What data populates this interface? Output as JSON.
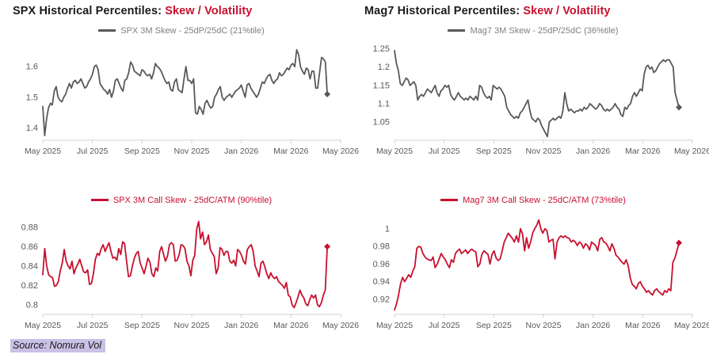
{
  "source_note": {
    "text": "Source: Nomura Vol",
    "highlight_color": "#c9c0e6"
  },
  "colors": {
    "title_black": "#1b1b1b",
    "title_red": "#c8102e",
    "axis_line": "#d0d0d0",
    "tick_label": "#595959",
    "background": "#ffffff"
  },
  "chart_data": [
    {
      "id": "spx-skew",
      "type": "line",
      "title": "SPX Historical Percentiles: Skew / Volatility",
      "title_black": "SPX Historical Percentiles:",
      "title_red": "Skew / Volatility",
      "legend": "SPX 3M Skew - 25dP/25dC (21%tile)",
      "line_color": "#595959",
      "legend_text_color": "#7f7f7f",
      "x_ticklabels": [
        "May 2025",
        "Jul 2025",
        "Sep 2025",
        "Nov 2025",
        "Jan 2026",
        "Mar 2026",
        "May 2026"
      ],
      "y_ticks": [
        {
          "label": "1.4",
          "value": 1.4
        },
        {
          "label": "1.5",
          "value": 1.5
        },
        {
          "label": "1.6",
          "value": 1.6
        }
      ],
      "ylim": [
        1.36,
        1.67
      ],
      "x_end_fraction": 0.955,
      "end_marker": "diamond",
      "grid": false,
      "legend_position": "top-center",
      "values": [
        1.47,
        1.375,
        1.43,
        1.465,
        1.48,
        1.475,
        1.52,
        1.535,
        1.5,
        1.49,
        1.485,
        1.5,
        1.51,
        1.53,
        1.545,
        1.53,
        1.55,
        1.555,
        1.545,
        1.55,
        1.56,
        1.545,
        1.53,
        1.535,
        1.55,
        1.56,
        1.575,
        1.6,
        1.605,
        1.59,
        1.545,
        1.535,
        1.525,
        1.52,
        1.51,
        1.525,
        1.5,
        1.52,
        1.555,
        1.56,
        1.545,
        1.53,
        1.52,
        1.555,
        1.56,
        1.58,
        1.615,
        1.605,
        1.585,
        1.58,
        1.575,
        1.57,
        1.59,
        1.585,
        1.575,
        1.57,
        1.575,
        1.56,
        1.58,
        1.61,
        1.6,
        1.595,
        1.585,
        1.57,
        1.555,
        1.545,
        1.55,
        1.525,
        1.52,
        1.55,
        1.56,
        1.525,
        1.52,
        1.515,
        1.56,
        1.6,
        1.555,
        1.555,
        1.545,
        1.56,
        1.45,
        1.445,
        1.47,
        1.46,
        1.445,
        1.48,
        1.49,
        1.475,
        1.465,
        1.47,
        1.5,
        1.51,
        1.525,
        1.535,
        1.5,
        1.49,
        1.5,
        1.505,
        1.51,
        1.5,
        1.51,
        1.52,
        1.525,
        1.53,
        1.54,
        1.52,
        1.5,
        1.54,
        1.545,
        1.53,
        1.52,
        1.51,
        1.5,
        1.51,
        1.53,
        1.55,
        1.545,
        1.56,
        1.57,
        1.575,
        1.555,
        1.545,
        1.555,
        1.56,
        1.58,
        1.57,
        1.575,
        1.585,
        1.595,
        1.59,
        1.605,
        1.61,
        1.6,
        1.655,
        1.64,
        1.6,
        1.585,
        1.575,
        1.595,
        1.59,
        1.56,
        1.585,
        1.585,
        1.53,
        1.53,
        1.58,
        1.63,
        1.625,
        1.615,
        1.51
      ]
    },
    {
      "id": "mag7-skew",
      "type": "line",
      "title": "Mag7 Historical Percentiles: Skew / Volatility",
      "title_black": "Mag7 Historical Percentiles:",
      "title_red": "Skew / Volatility",
      "legend": "Mag7 3M Skew - 25dP/25dC (36%tile)",
      "line_color": "#595959",
      "legend_text_color": "#7f7f7f",
      "x_ticklabels": [
        "May 2025",
        "Jul 2025",
        "Sep 2025",
        "Nov 2025",
        "Jan 2026",
        "Mar 2026",
        "May 2026"
      ],
      "y_ticks": [
        {
          "label": "1.05",
          "value": 1.05
        },
        {
          "label": "1.1",
          "value": 1.1
        },
        {
          "label": "1.15",
          "value": 1.15
        },
        {
          "label": "1.2",
          "value": 1.2
        },
        {
          "label": "1.25",
          "value": 1.25
        }
      ],
      "ylim": [
        1.0,
        1.26
      ],
      "x_end_fraction": 0.955,
      "end_marker": "diamond",
      "grid": false,
      "legend_position": "top-center",
      "values": [
        1.245,
        1.21,
        1.19,
        1.155,
        1.15,
        1.16,
        1.17,
        1.165,
        1.15,
        1.155,
        1.16,
        1.15,
        1.11,
        1.12,
        1.125,
        1.12,
        1.13,
        1.14,
        1.135,
        1.13,
        1.14,
        1.15,
        1.13,
        1.12,
        1.135,
        1.14,
        1.15,
        1.145,
        1.15,
        1.125,
        1.115,
        1.11,
        1.12,
        1.13,
        1.12,
        1.115,
        1.11,
        1.115,
        1.11,
        1.12,
        1.115,
        1.11,
        1.12,
        1.11,
        1.15,
        1.145,
        1.13,
        1.12,
        1.115,
        1.12,
        1.11,
        1.15,
        1.145,
        1.14,
        1.145,
        1.14,
        1.13,
        1.12,
        1.09,
        1.08,
        1.07,
        1.065,
        1.06,
        1.065,
        1.06,
        1.075,
        1.08,
        1.09,
        1.1,
        1.11,
        1.08,
        1.06,
        1.055,
        1.05,
        1.06,
        1.055,
        1.04,
        1.03,
        1.02,
        1.01,
        1.05,
        1.055,
        1.06,
        1.055,
        1.06,
        1.065,
        1.06,
        1.08,
        1.13,
        1.1,
        1.08,
        1.085,
        1.08,
        1.075,
        1.08,
        1.08,
        1.085,
        1.08,
        1.09,
        1.085,
        1.09,
        1.1,
        1.095,
        1.09,
        1.085,
        1.09,
        1.1,
        1.095,
        1.085,
        1.08,
        1.085,
        1.08,
        1.085,
        1.09,
        1.1,
        1.09,
        1.085,
        1.07,
        1.065,
        1.09,
        1.085,
        1.095,
        1.1,
        1.12,
        1.13,
        1.12,
        1.13,
        1.14,
        1.135,
        1.18,
        1.2,
        1.205,
        1.195,
        1.2,
        1.185,
        1.19,
        1.2,
        1.21,
        1.215,
        1.22,
        1.215,
        1.22,
        1.22,
        1.21,
        1.2,
        1.13,
        1.11,
        1.09
      ]
    },
    {
      "id": "spx-call-skew",
      "type": "line",
      "title": "",
      "title_black": "",
      "title_red": "",
      "legend": "SPX 3M Call Skew - 25dC/ATM (90%tile)",
      "line_color": "#c8102e",
      "legend_text_color": "#c8102e",
      "x_ticklabels": [
        "May 2025",
        "Jul 2025",
        "Sep 2025",
        "Nov 2025",
        "Jan 2026",
        "Mar 2026",
        "May 2026"
      ],
      "y_ticks": [
        {
          "label": "0.8",
          "value": 0.8
        },
        {
          "label": "0.82",
          "value": 0.82
        },
        {
          "label": "0.84",
          "value": 0.84
        },
        {
          "label": "0.86",
          "value": 0.86
        },
        {
          "label": "0.88",
          "value": 0.88
        }
      ],
      "ylim": [
        0.79,
        0.893
      ],
      "x_end_fraction": 0.955,
      "end_marker": "diamond",
      "grid": false,
      "legend_position": "top-center",
      "values": [
        0.831,
        0.858,
        0.84,
        0.831,
        0.829,
        0.828,
        0.819,
        0.82,
        0.824,
        0.835,
        0.843,
        0.857,
        0.845,
        0.84,
        0.837,
        0.845,
        0.832,
        0.838,
        0.842,
        0.847,
        0.84,
        0.834,
        0.833,
        0.836,
        0.821,
        0.822,
        0.832,
        0.847,
        0.853,
        0.851,
        0.858,
        0.862,
        0.855,
        0.86,
        0.864,
        0.855,
        0.848,
        0.849,
        0.846,
        0.858,
        0.852,
        0.865,
        0.863,
        0.845,
        0.829,
        0.83,
        0.84,
        0.848,
        0.853,
        0.855,
        0.843,
        0.838,
        0.832,
        0.84,
        0.848,
        0.844,
        0.832,
        0.829,
        0.838,
        0.835,
        0.855,
        0.86,
        0.852,
        0.845,
        0.85,
        0.862,
        0.864,
        0.862,
        0.845,
        0.846,
        0.852,
        0.862,
        0.861,
        0.858,
        0.845,
        0.84,
        0.83,
        0.846,
        0.851,
        0.878,
        0.886,
        0.868,
        0.875,
        0.862,
        0.865,
        0.872,
        0.857,
        0.853,
        0.85,
        0.832,
        0.838,
        0.859,
        0.857,
        0.851,
        0.855,
        0.855,
        0.845,
        0.843,
        0.846,
        0.84,
        0.857,
        0.855,
        0.851,
        0.845,
        0.842,
        0.857,
        0.86,
        0.862,
        0.855,
        0.84,
        0.835,
        0.829,
        0.843,
        0.845,
        0.839,
        0.832,
        0.827,
        0.833,
        0.829,
        0.827,
        0.829,
        0.824,
        0.822,
        0.82,
        0.817,
        0.823,
        0.81,
        0.808,
        0.8,
        0.797,
        0.802,
        0.808,
        0.815,
        0.81,
        0.807,
        0.801,
        0.799,
        0.805,
        0.81,
        0.807,
        0.81,
        0.8,
        0.798,
        0.802,
        0.81,
        0.815,
        0.86
      ]
    },
    {
      "id": "mag7-call-skew",
      "type": "line",
      "title": "",
      "title_black": "",
      "title_red": "",
      "legend": "Mag7 3M Call Skew - 25dC/ATM (73%tile)",
      "line_color": "#c8102e",
      "legend_text_color": "#c8102e",
      "x_ticklabels": [
        "May 2025",
        "Jul 2025",
        "Sep 2025",
        "Nov 2025",
        "Jan 2026",
        "Mar 2026",
        "May 2026"
      ],
      "y_ticks": [
        {
          "label": "0.92",
          "value": 0.92
        },
        {
          "label": "0.94",
          "value": 0.94
        },
        {
          "label": "0.96",
          "value": 0.96
        },
        {
          "label": "0.98",
          "value": 0.98
        },
        {
          "label": "1",
          "value": 1.0
        }
      ],
      "ylim": [
        0.903,
        1.016
      ],
      "x_end_fraction": 0.955,
      "end_marker": "diamond",
      "grid": false,
      "legend_position": "top-center",
      "values": [
        0.908,
        0.915,
        0.925,
        0.938,
        0.945,
        0.94,
        0.944,
        0.948,
        0.945,
        0.952,
        0.957,
        0.978,
        0.98,
        0.979,
        0.972,
        0.968,
        0.966,
        0.965,
        0.964,
        0.968,
        0.956,
        0.96,
        0.966,
        0.972,
        0.968,
        0.965,
        0.96,
        0.956,
        0.965,
        0.962,
        0.972,
        0.975,
        0.977,
        0.972,
        0.974,
        0.976,
        0.972,
        0.975,
        0.977,
        0.975,
        0.974,
        0.957,
        0.96,
        0.971,
        0.975,
        0.973,
        0.971,
        0.96,
        0.971,
        0.975,
        0.967,
        0.964,
        0.966,
        0.975,
        0.985,
        0.99,
        0.995,
        0.992,
        0.989,
        0.985,
        0.992,
        0.985,
        1.0,
        0.994,
        0.975,
        0.99,
        0.978,
        0.985,
        0.995,
        1.0,
        1.004,
        1.01,
        1.0,
        0.995,
        1.0,
        0.998,
        0.985,
        0.987,
        0.988,
        0.966,
        0.985,
        0.99,
        0.992,
        0.99,
        0.992,
        0.99,
        0.989,
        0.985,
        0.987,
        0.985,
        0.981,
        0.985,
        0.983,
        0.978,
        0.983,
        0.981,
        0.976,
        0.985,
        0.983,
        0.981,
        0.975,
        0.988,
        0.99,
        0.985,
        0.984,
        0.98,
        0.975,
        0.983,
        0.978,
        0.97,
        0.968,
        0.965,
        0.962,
        0.96,
        0.965,
        0.958,
        0.945,
        0.937,
        0.935,
        0.932,
        0.938,
        0.94,
        0.935,
        0.932,
        0.928,
        0.93,
        0.927,
        0.925,
        0.93,
        0.932,
        0.929,
        0.927,
        0.925,
        0.93,
        0.928,
        0.932,
        0.93,
        0.962,
        0.967,
        0.975,
        0.984
      ]
    }
  ]
}
